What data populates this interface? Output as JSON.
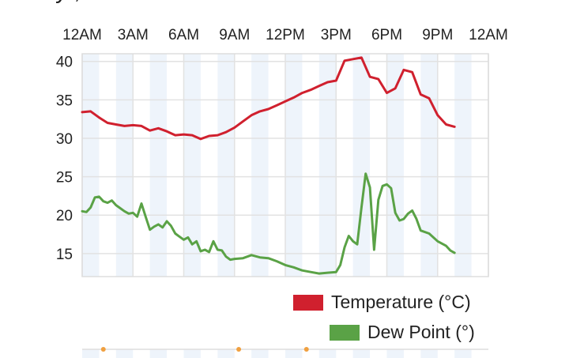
{
  "title_fragment": "y ,",
  "chart_data": {
    "type": "line",
    "x_tick_labels": [
      "12AM",
      "3AM",
      "6AM",
      "9AM",
      "12PM",
      "3PM",
      "6PM",
      "9PM",
      "12AM"
    ],
    "x_unit": "hour of day",
    "xlim": [
      0,
      24
    ],
    "ylim": [
      12,
      41
    ],
    "y_ticks": [
      15,
      20,
      25,
      30,
      35,
      40
    ],
    "grid": true,
    "legend_position": "bottom-right",
    "series": [
      {
        "name": "Temperature (°C)",
        "color": "#d0202e",
        "x": [
          0,
          0.5,
          1,
          1.5,
          2,
          2.5,
          3,
          3.5,
          4,
          4.5,
          5,
          5.5,
          6,
          6.5,
          7,
          7.5,
          8,
          8.5,
          9,
          9.5,
          10,
          10.5,
          11,
          11.5,
          12,
          12.5,
          13,
          13.5,
          14,
          14.5,
          15,
          15.5,
          16,
          16.5,
          17,
          17.5,
          18,
          18.5,
          19,
          19.5,
          20,
          20.5,
          21,
          21.5,
          22
        ],
        "values": [
          33.4,
          33.5,
          32.7,
          32.0,
          31.8,
          31.6,
          31.7,
          31.6,
          31.0,
          31.3,
          30.9,
          30.4,
          30.5,
          30.4,
          29.9,
          30.3,
          30.4,
          30.8,
          31.4,
          32.2,
          33.0,
          33.5,
          33.8,
          34.3,
          34.8,
          35.3,
          35.9,
          36.3,
          36.8,
          37.3,
          37.5,
          40.1,
          40.3,
          40.5,
          38.0,
          37.7,
          35.9,
          36.5,
          38.9,
          38.6,
          35.7,
          35.2,
          33.0,
          31.8,
          31.5
        ]
      },
      {
        "name": "Dew Point (°)",
        "color": "#5aa246",
        "x": [
          0,
          0.25,
          0.5,
          0.75,
          1,
          1.25,
          1.5,
          1.75,
          2,
          2.25,
          2.5,
          2.75,
          3,
          3.25,
          3.5,
          3.75,
          4,
          4.25,
          4.5,
          4.75,
          5,
          5.25,
          5.5,
          5.75,
          6,
          6.25,
          6.5,
          6.75,
          7,
          7.25,
          7.5,
          7.75,
          8,
          8.25,
          8.5,
          8.75,
          9,
          9.5,
          10,
          10.5,
          11,
          11.5,
          12,
          12.5,
          13,
          13.5,
          14,
          14.5,
          15,
          15.25,
          15.5,
          15.75,
          16,
          16.25,
          16.5,
          16.75,
          17,
          17.25,
          17.5,
          17.75,
          18,
          18.25,
          18.5,
          18.75,
          19,
          19.25,
          19.5,
          19.75,
          20,
          20.5,
          21,
          21.5,
          21.75,
          22
        ],
        "values": [
          20.5,
          20.4,
          21.0,
          22.3,
          22.4,
          21.8,
          21.6,
          21.9,
          21.3,
          20.9,
          20.5,
          20.2,
          20.3,
          19.8,
          21.5,
          19.8,
          18.1,
          18.5,
          18.8,
          18.4,
          19.2,
          18.6,
          17.6,
          17.2,
          16.8,
          17.1,
          16.2,
          16.6,
          15.3,
          15.5,
          15.2,
          16.6,
          15.5,
          15.4,
          14.6,
          14.2,
          14.3,
          14.4,
          14.8,
          14.5,
          14.4,
          14.0,
          13.5,
          13.2,
          12.8,
          12.6,
          12.4,
          12.5,
          12.6,
          13.5,
          15.8,
          17.3,
          16.6,
          16.2,
          21.0,
          25.4,
          23.6,
          15.5,
          22.0,
          23.8,
          24.0,
          23.5,
          20.3,
          19.3,
          19.5,
          20.2,
          20.6,
          19.5,
          18.0,
          17.6,
          16.6,
          16.0,
          15.4,
          15.1
        ]
      }
    ]
  },
  "legend": {
    "temperature_label": "Temperature (°C)",
    "dewpoint_label": "Dew Point (°)",
    "temperature_color": "#d0202e",
    "dewpoint_color": "#5aa246"
  },
  "lower_chart": {
    "visible_axis_label": "",
    "marker_color": "#f0a040"
  }
}
